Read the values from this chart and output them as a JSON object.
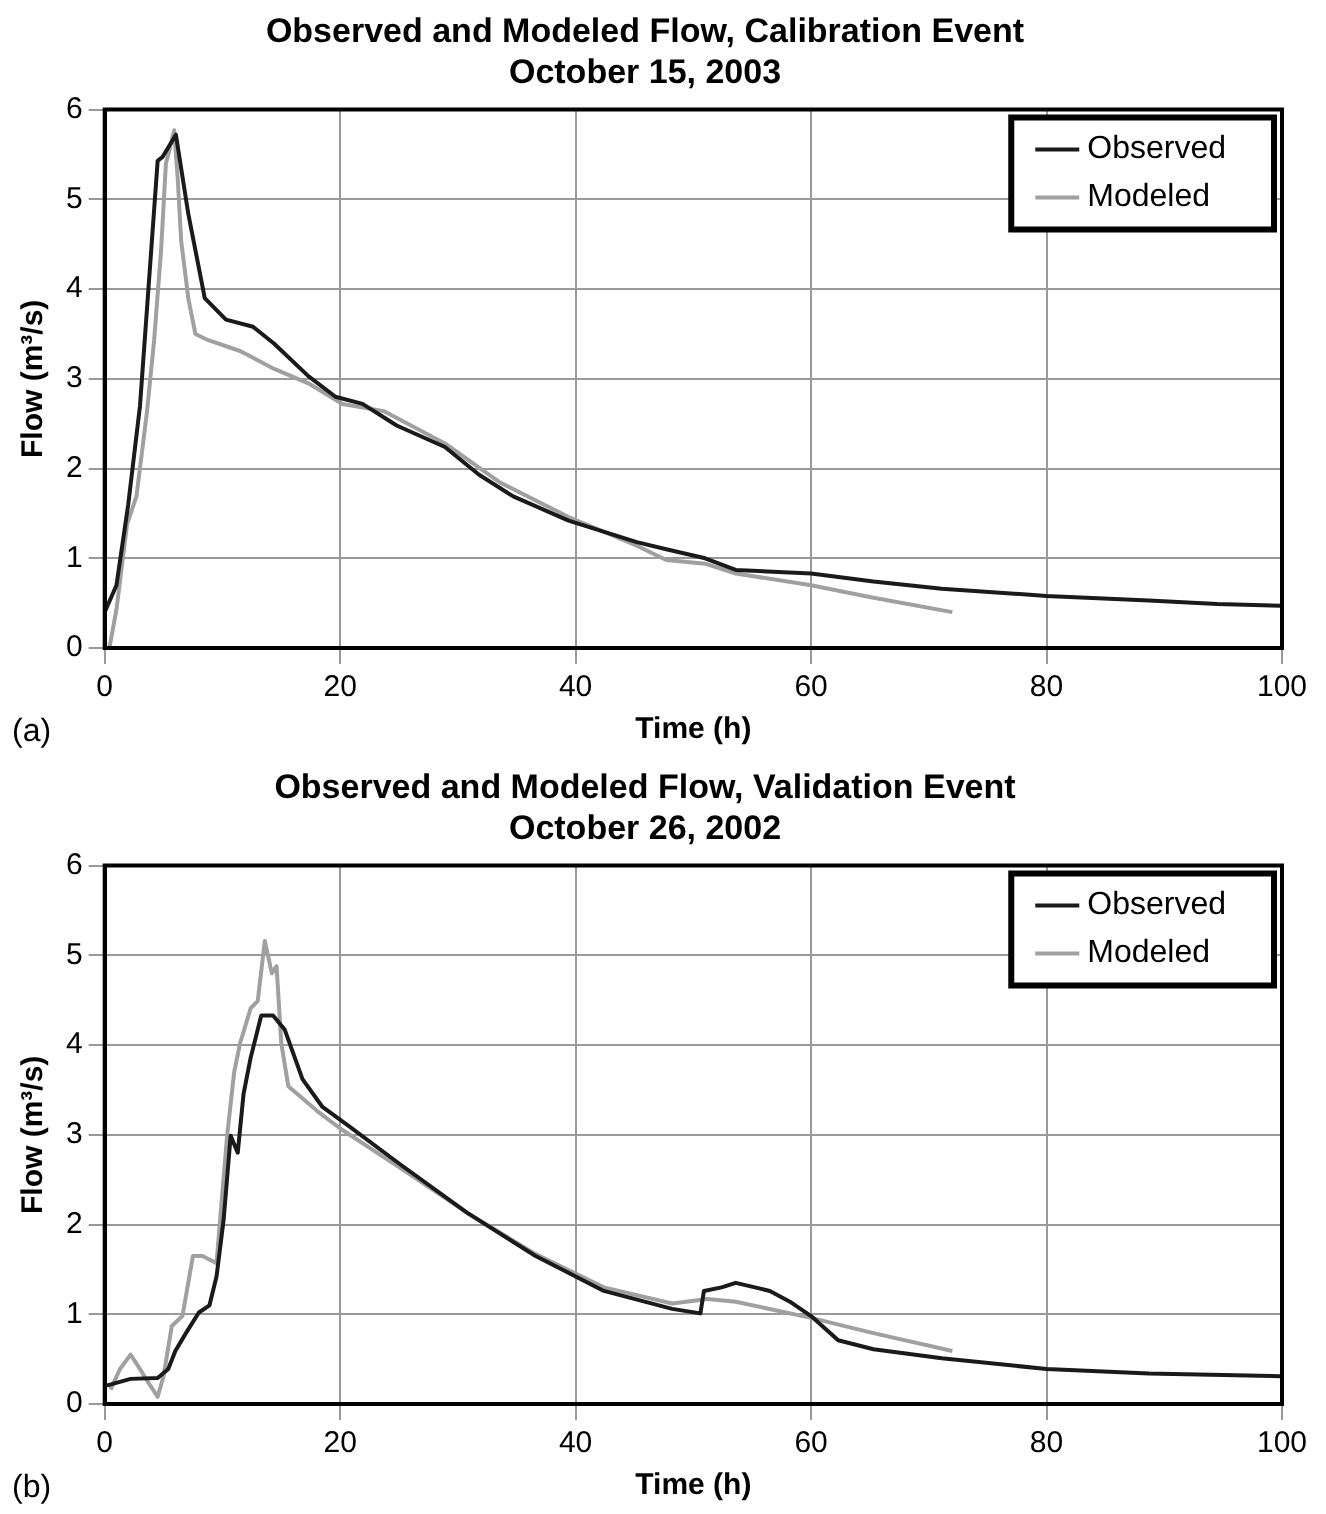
{
  "chart_data": [
    {
      "type": "line",
      "title": "Observed and Modeled Flow, Calibration Event",
      "subtitle": "October 15, 2003",
      "xlabel": "Time (h)",
      "ylabel": "Flow (m³/s)",
      "annotations": [
        "(a)"
      ],
      "xlim": [
        0,
        100
      ],
      "xticks": [
        0,
        20,
        40,
        60,
        80,
        100
      ],
      "ylim": [
        0,
        6
      ],
      "yticks": [
        0,
        1,
        2,
        3,
        4,
        5,
        6
      ],
      "grid": true,
      "legend": "top right",
      "marker": "none",
      "line_style": "solid",
      "series": [
        {
          "name": "Observed",
          "color": "#1a1a1a",
          "x": [
            0,
            1,
            2,
            3,
            4.5,
            4.9,
            6.05,
            7.1,
            8.5,
            10.3,
            12.6,
            14.4,
            17.3,
            19.6,
            21.9,
            24.8,
            28.9,
            31.8,
            34.7,
            39.4,
            45.2,
            47.7,
            51,
            53.6,
            60,
            65.3,
            71.1,
            80,
            88.7,
            94.5,
            100
          ],
          "values": [
            0.4,
            0.7,
            1.6,
            2.7,
            5.43,
            5.47,
            5.72,
            4.84,
            3.9,
            3.66,
            3.58,
            3.39,
            3.03,
            2.8,
            2.72,
            2.48,
            2.24,
            1.93,
            1.69,
            1.42,
            1.18,
            1.1,
            1.0,
            0.87,
            0.83,
            0.74,
            0.66,
            0.58,
            0.53,
            0.49,
            0.47
          ]
        },
        {
          "name": "Modeled",
          "color": "#a0a0a0",
          "x": [
            0.4,
            1,
            1.9,
            2.7,
            3.6,
            4.2,
            4.8,
            5.2,
            5.5,
            5.9,
            6.2,
            6.5,
            7.1,
            7.7,
            8.8,
            11.5,
            14.4,
            17.3,
            20.2,
            23.7,
            28.9,
            33.5,
            39.4,
            45.2,
            47.7,
            51,
            53.6,
            60,
            65.3,
            72
          ],
          "values": [
            0,
            0.43,
            1.38,
            1.69,
            2.64,
            3.43,
            4.45,
            5.4,
            5.55,
            5.77,
            5.24,
            4.53,
            3.9,
            3.5,
            3.43,
            3.31,
            3.11,
            2.95,
            2.72,
            2.64,
            2.28,
            1.85,
            1.46,
            1.14,
            0.98,
            0.94,
            0.83,
            0.7,
            0.56,
            0.4
          ]
        }
      ]
    },
    {
      "type": "line",
      "title": "Observed and Modeled Flow, Validation Event",
      "subtitle": "October 26, 2002",
      "xlabel": "Time (h)",
      "ylabel": "Flow (m³/s)",
      "annotations": [
        "(b)"
      ],
      "xlim": [
        0,
        100
      ],
      "xticks": [
        0,
        20,
        40,
        60,
        80,
        100
      ],
      "ylim": [
        0,
        6
      ],
      "yticks": [
        0,
        1,
        2,
        3,
        4,
        5,
        6
      ],
      "grid": true,
      "legend": "top right",
      "marker": "none",
      "line_style": "solid",
      "series": [
        {
          "name": "Observed",
          "color": "#1a1a1a",
          "x": [
            0,
            2.2,
            4.5,
            5.4,
            6,
            6.9,
            8,
            8.9,
            9.5,
            10.1,
            10.7,
            11.3,
            11.8,
            12.4,
            13.3,
            14.3,
            15.3,
            16.8,
            18.5,
            20.6,
            25,
            30.8,
            36.6,
            42.4,
            48.2,
            50.6,
            50.9,
            52.4,
            53.6,
            56.5,
            58.2,
            60,
            62.3,
            65.3,
            71.1,
            80,
            88.7,
            100
          ],
          "values": [
            0.2,
            0.28,
            0.29,
            0.39,
            0.59,
            0.79,
            1.02,
            1.1,
            1.42,
            2.05,
            2.99,
            2.8,
            3.46,
            3.86,
            4.33,
            4.33,
            4.17,
            3.62,
            3.31,
            3.11,
            2.68,
            2.13,
            1.65,
            1.26,
            1.06,
            1.01,
            1.26,
            1.3,
            1.35,
            1.26,
            1.14,
            0.98,
            0.71,
            0.61,
            0.51,
            0.39,
            0.34,
            0.31
          ]
        },
        {
          "name": "Modeled",
          "color": "#a0a0a0",
          "x": [
            0.5,
            1.3,
            2.2,
            2.8,
            3.7,
            4.5,
            5,
            5.7,
            6.6,
            7.5,
            8.3,
            9.5,
            10.4,
            11,
            11.5,
            12.4,
            13,
            13.6,
            14.2,
            14.6,
            15,
            15.6,
            18,
            20,
            25,
            30.8,
            36.6,
            42.4,
            48.2,
            51.2,
            53.6,
            60,
            65.3,
            72
          ],
          "values": [
            0.16,
            0.39,
            0.55,
            0.43,
            0.24,
            0.08,
            0.31,
            0.87,
            0.98,
            1.65,
            1.65,
            1.57,
            2.99,
            3.7,
            4.02,
            4.41,
            4.49,
            5.16,
            4.8,
            4.88,
            4.02,
            3.54,
            3.27,
            3.07,
            2.64,
            2.13,
            1.67,
            1.3,
            1.12,
            1.17,
            1.14,
            0.96,
            0.79,
            0.59
          ]
        }
      ]
    }
  ]
}
